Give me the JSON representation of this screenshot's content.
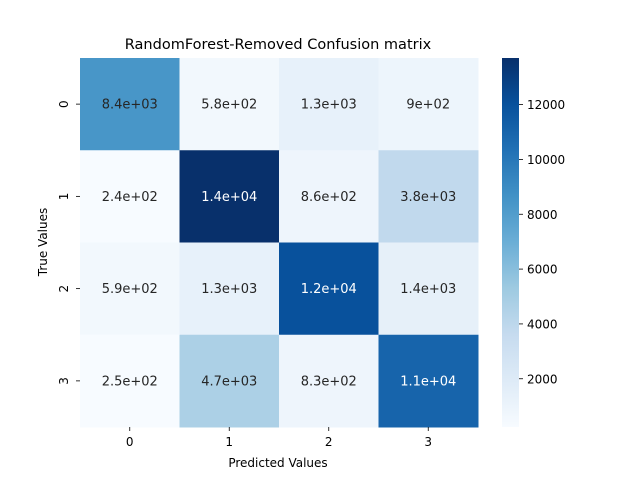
{
  "chart_data": {
    "type": "heatmap",
    "title": "RandomForest-Removed Confusion matrix",
    "xlabel": "Predicted Values",
    "ylabel": "True Values",
    "x_categories": [
      "0",
      "1",
      "2",
      "3"
    ],
    "y_categories": [
      "0",
      "1",
      "2",
      "3"
    ],
    "values": [
      [
        8400,
        580,
        1300,
        900
      ],
      [
        240,
        13700,
        860,
        3800
      ],
      [
        590,
        1300,
        12000,
        1400
      ],
      [
        250,
        4700,
        830,
        11000
      ]
    ],
    "annotations": [
      [
        "8.4e+03",
        "5.8e+02",
        "1.3e+03",
        "9e+02"
      ],
      [
        "2.4e+02",
        "1.4e+04",
        "8.6e+02",
        "3.8e+03"
      ],
      [
        "5.9e+02",
        "1.3e+03",
        "1.2e+04",
        "1.4e+03"
      ],
      [
        "2.5e+02",
        "4.7e+03",
        "8.3e+02",
        "1.1e+04"
      ]
    ],
    "colormap": "Blues",
    "color_range": [
      240,
      13700
    ],
    "colorbar_ticks": [
      "2000",
      "4000",
      "6000",
      "8000",
      "10000",
      "12000"
    ],
    "colorbar_tick_values": [
      2000,
      4000,
      6000,
      8000,
      10000,
      12000
    ]
  }
}
